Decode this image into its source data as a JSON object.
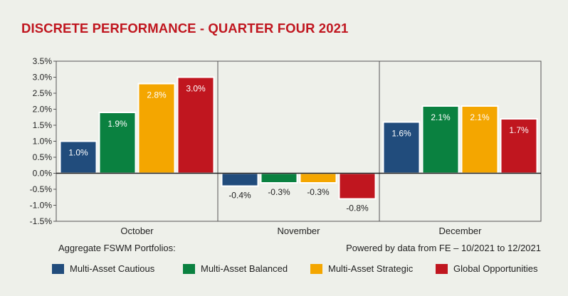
{
  "title": "DISCRETE PERFORMANCE - QUARTER FOUR 2021",
  "footnote_left": "Aggregate FSWM Portfolios:",
  "footnote_right": "Powered by data from FE – 10/2021 to 12/2021",
  "chart_data": {
    "type": "bar",
    "title": "DISCRETE PERFORMANCE - QUARTER FOUR 2021",
    "categories": [
      "October",
      "November",
      "December"
    ],
    "series": [
      {
        "name": "Multi-Asset Cautious",
        "color": "#214c7c",
        "values": [
          1.0,
          -0.4,
          1.6
        ],
        "labels": [
          "1.0%",
          "-0.4%",
          "1.6%"
        ]
      },
      {
        "name": "Multi-Asset Balanced",
        "color": "#0a8140",
        "values": [
          1.9,
          -0.3,
          2.1
        ],
        "labels": [
          "1.9%",
          "-0.3%",
          "2.1%"
        ]
      },
      {
        "name": "Multi-Asset Strategic",
        "color": "#f4a600",
        "values": [
          2.8,
          -0.3,
          2.1
        ],
        "labels": [
          "2.8%",
          "-0.3%",
          "2.1%"
        ]
      },
      {
        "name": "Global Opportunities",
        "color": "#c0161f",
        "values": [
          3.0,
          -0.8,
          1.7
        ],
        "labels": [
          "3.0%",
          "-0.8%",
          "1.7%"
        ]
      }
    ],
    "ylim": [
      -1.5,
      3.5
    ],
    "yticks": [
      3.5,
      3.0,
      2.5,
      2.0,
      1.5,
      1.0,
      0.5,
      0.0,
      -0.5,
      -1.0,
      -1.5
    ],
    "ytick_labels": [
      "3.5%",
      "3.0%",
      "2.5%",
      "2.0%",
      "1.5%",
      "1.0%",
      "0.5%",
      "0.0%",
      "-0.5%",
      "-1.0%",
      "-1.5%"
    ],
    "xlabel": "",
    "ylabel": "",
    "grid": false,
    "legend_position": "bottom"
  }
}
